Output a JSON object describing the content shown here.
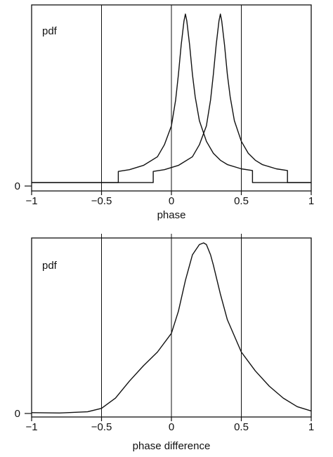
{
  "chart_data": [
    {
      "type": "line",
      "title": "",
      "xlabel": "phase",
      "ylabel": "",
      "annotation": "pdf",
      "xlim": [
        -1,
        1
      ],
      "ylim": [
        0,
        1.0
      ],
      "x_ticks": [
        -1,
        -0.5,
        0,
        0.5,
        1
      ],
      "x_tick_labels": [
        "−1",
        "−0.5",
        "0",
        "0.5",
        "1"
      ],
      "y_ticks": [
        0
      ],
      "y_tick_labels": [
        "0"
      ],
      "reference_lines_x": [
        -0.5,
        0,
        0.5
      ],
      "grid": false,
      "series": [
        {
          "x": [
            -1.0,
            -0.38,
            -0.38,
            -0.3,
            -0.2,
            -0.1,
            -0.05,
            0.0,
            0.03,
            0.05,
            0.07,
            0.09,
            0.1,
            0.11,
            0.13,
            0.15,
            0.17,
            0.2,
            0.25,
            0.3,
            0.35,
            0.4,
            0.5,
            0.58,
            0.58,
            1.0
          ],
          "y": [
            0.02,
            0.02,
            0.085,
            0.095,
            0.12,
            0.17,
            0.24,
            0.35,
            0.5,
            0.65,
            0.82,
            0.96,
            1.0,
            0.96,
            0.82,
            0.65,
            0.52,
            0.38,
            0.26,
            0.19,
            0.15,
            0.125,
            0.1,
            0.09,
            0.02,
            0.02
          ]
        },
        {
          "x": [
            -1.0,
            -0.13,
            -0.13,
            -0.05,
            0.05,
            0.15,
            0.2,
            0.25,
            0.28,
            0.3,
            0.32,
            0.34,
            0.35,
            0.36,
            0.38,
            0.4,
            0.42,
            0.45,
            0.5,
            0.55,
            0.6,
            0.65,
            0.75,
            0.83,
            0.83,
            1.0
          ],
          "y": [
            0.02,
            0.02,
            0.085,
            0.095,
            0.12,
            0.17,
            0.24,
            0.35,
            0.5,
            0.65,
            0.82,
            0.96,
            1.0,
            0.96,
            0.82,
            0.65,
            0.52,
            0.38,
            0.26,
            0.19,
            0.15,
            0.125,
            0.1,
            0.09,
            0.02,
            0.02
          ]
        }
      ]
    },
    {
      "type": "line",
      "title": "",
      "xlabel": "phase difference",
      "ylabel": "",
      "annotation": "pdf",
      "xlim": [
        -1,
        1
      ],
      "ylim": [
        0,
        1.0
      ],
      "x_ticks": [
        -1,
        -0.5,
        0,
        0.5,
        1
      ],
      "x_tick_labels": [
        "−1",
        "−0.5",
        "0",
        "0.5",
        "1"
      ],
      "y_ticks": [
        0
      ],
      "y_tick_labels": [
        "0"
      ],
      "reference_lines_x": [
        -0.5,
        0,
        0.5
      ],
      "grid": false,
      "series": [
        {
          "x": [
            -1.0,
            -0.8,
            -0.6,
            -0.5,
            -0.4,
            -0.3,
            -0.2,
            -0.1,
            0.0,
            0.05,
            0.1,
            0.15,
            0.2,
            0.23,
            0.25,
            0.28,
            0.3,
            0.35,
            0.4,
            0.5,
            0.6,
            0.7,
            0.8,
            0.9,
            1.0
          ],
          "y": [
            0.005,
            0.003,
            0.01,
            0.03,
            0.09,
            0.19,
            0.28,
            0.36,
            0.47,
            0.6,
            0.78,
            0.93,
            0.99,
            1.0,
            0.99,
            0.93,
            0.87,
            0.7,
            0.55,
            0.36,
            0.25,
            0.16,
            0.09,
            0.04,
            0.015
          ]
        }
      ]
    }
  ]
}
